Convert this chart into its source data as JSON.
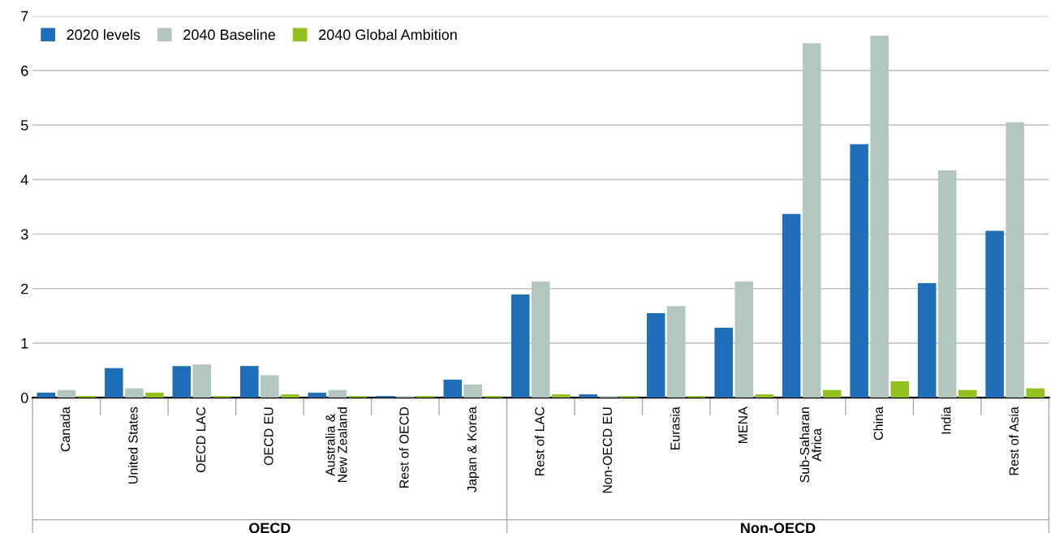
{
  "chart_data": {
    "type": "bar",
    "categories": [
      "Canada",
      "United States",
      "OECD LAC",
      "OECD EU",
      "Australia &\nNew Zealand",
      "Rest of OECD",
      "Japan & Korea",
      "Rest of LAC",
      "Non-OECD EU",
      "Eurasia",
      "MENA",
      "Sub-Saharan\nAfrica",
      "China",
      "India",
      "Rest of Asia"
    ],
    "series": [
      {
        "name": "2020 levels",
        "color": "#1f6fb8",
        "values": [
          0.09,
          0.54,
          0.58,
          0.58,
          0.09,
          0.03,
          0.33,
          1.89,
          0.06,
          1.55,
          1.28,
          3.37,
          4.65,
          2.1,
          3.06
        ]
      },
      {
        "name": "2040 Baseline",
        "color": "#b4c6c0",
        "values": [
          0.14,
          0.17,
          0.61,
          0.41,
          0.14,
          0.03,
          0.24,
          2.13,
          0.03,
          1.68,
          2.13,
          6.5,
          6.64,
          4.17,
          5.05
        ]
      },
      {
        "name": "2040 Global Ambition",
        "color": "#93c01f",
        "values": [
          0.03,
          0.09,
          0.03,
          0.06,
          0.03,
          0.03,
          0.03,
          0.06,
          0.03,
          0.03,
          0.06,
          0.14,
          0.3,
          0.14,
          0.17
        ]
      }
    ],
    "ylim": [
      0,
      7
    ],
    "yticks": [
      0,
      1,
      2,
      3,
      4,
      5,
      6,
      7
    ],
    "grid": "y",
    "legend": "top left",
    "annotations": [
      "OECD",
      "Non-OECD"
    ]
  }
}
